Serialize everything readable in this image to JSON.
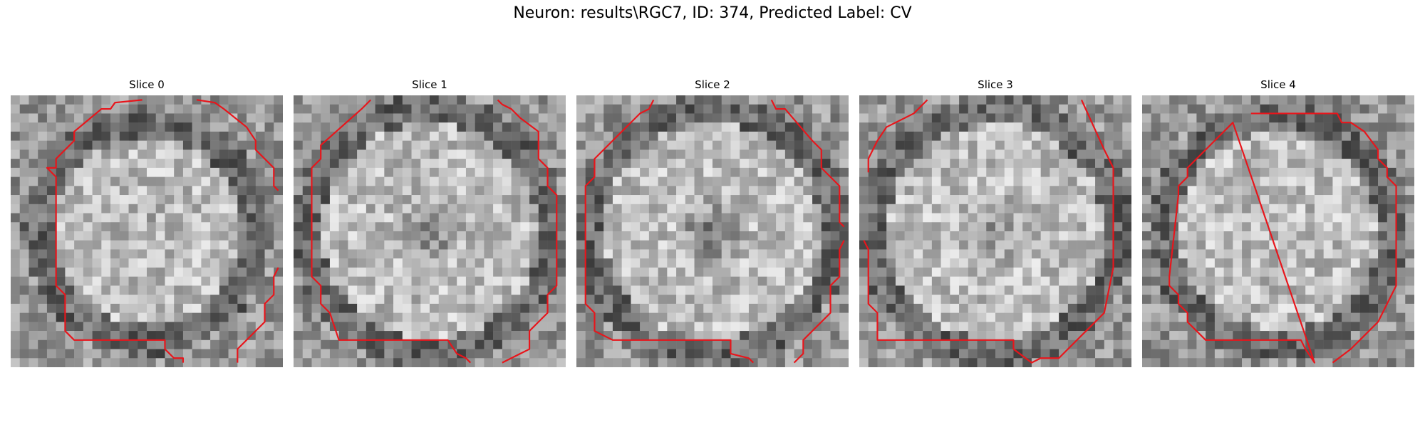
{
  "figure": {
    "title": "Neuron: results\\RGC7, ID: 374, Predicted Label: CV"
  },
  "panels": [
    {
      "title": "Slice 0"
    },
    {
      "title": "Slice 1"
    },
    {
      "title": "Slice 2"
    },
    {
      "title": "Slice 3"
    },
    {
      "title": "Slice 4"
    }
  ],
  "colors": {
    "contour": "#e8151b",
    "background": "#ffffff"
  }
}
